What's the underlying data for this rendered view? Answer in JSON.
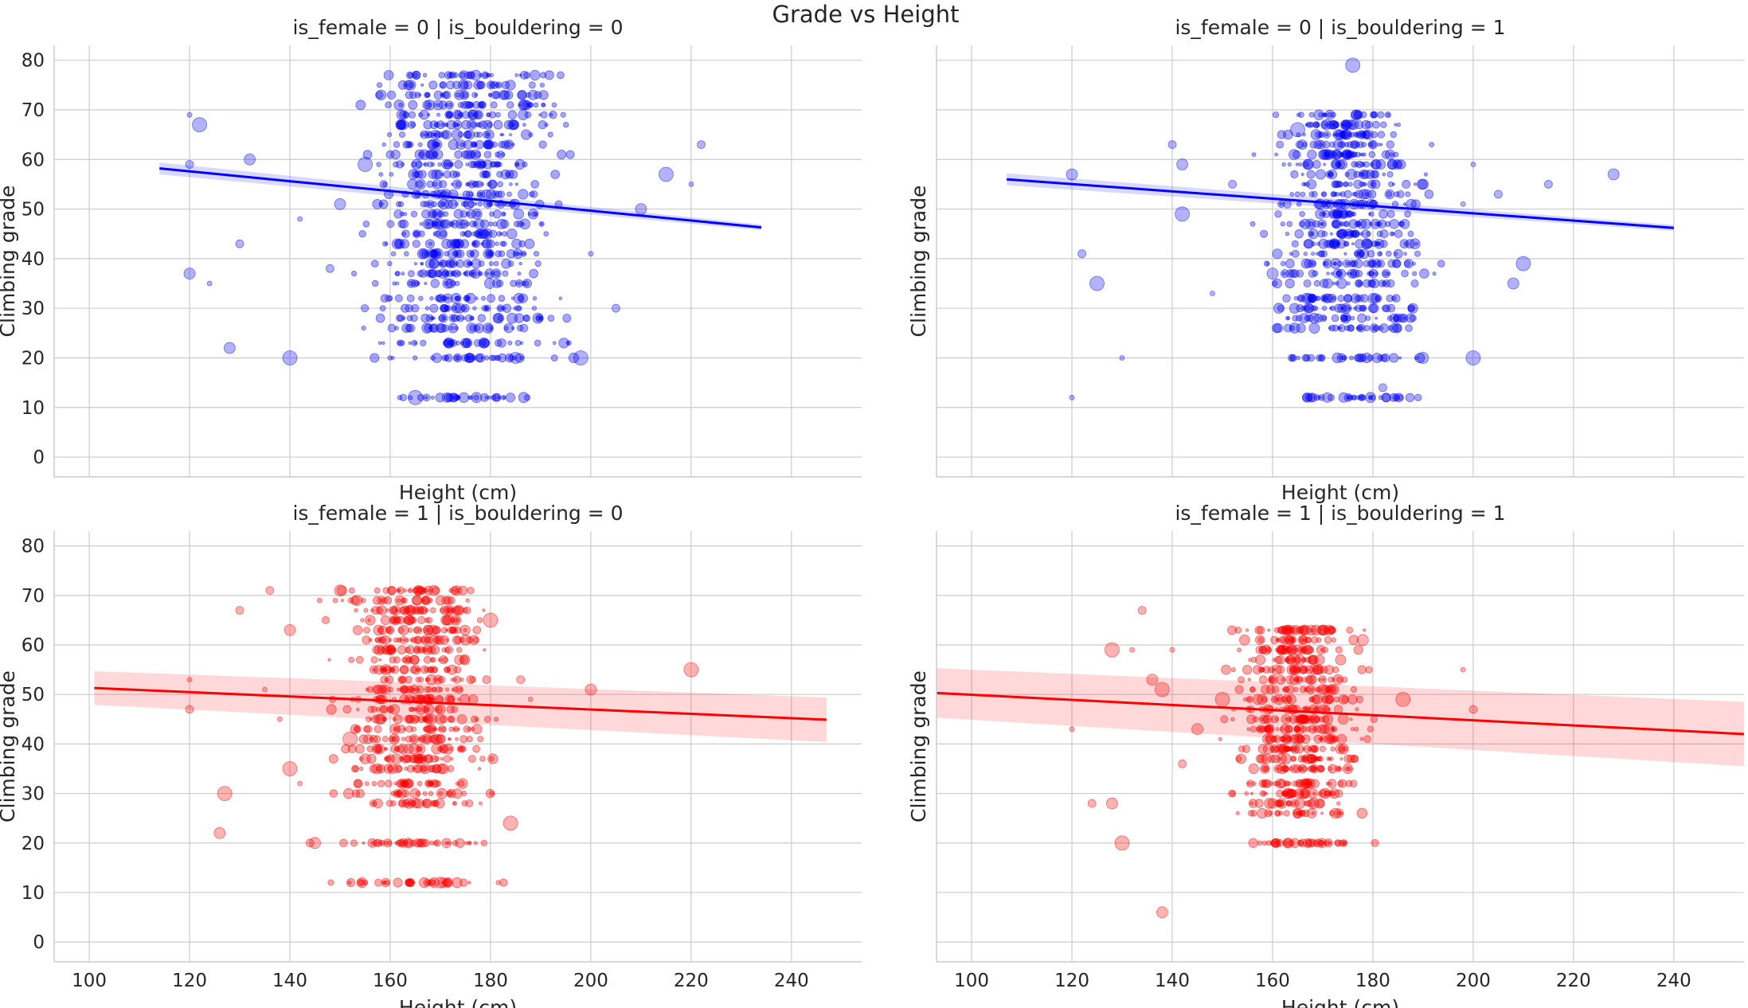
{
  "figure": {
    "title": "Grade vs Height"
  },
  "chart_data": [
    {
      "type": "scatter",
      "title": "is_female = 0 | is_bouldering = 0",
      "xlabel": "Height (cm)",
      "ylabel": "Climbing grade",
      "xlim": [
        93,
        254
      ],
      "ylim": [
        -4,
        83
      ],
      "xticks": [],
      "yticks": [
        0,
        10,
        20,
        30,
        40,
        50,
        60,
        70,
        80
      ],
      "color": "#0000ff",
      "grid": true,
      "regression": {
        "x": [
          114,
          234
        ],
        "y": [
          58.2,
          46.3
        ],
        "ci_halfwidth": [
          1.2,
          0.6
        ]
      },
      "cluster": {
        "x_range": [
          150,
          200
        ],
        "y_levels": [
          12,
          20,
          23,
          26,
          28,
          30,
          32,
          35,
          37,
          39,
          41,
          43,
          45,
          47,
          49,
          51,
          53,
          55,
          57,
          59,
          61,
          63,
          65,
          67,
          69,
          71,
          73,
          75,
          77
        ]
      },
      "sample_points": [
        {
          "x": 120,
          "y": 69
        },
        {
          "x": 120,
          "y": 59
        },
        {
          "x": 120,
          "y": 37
        },
        {
          "x": 122,
          "y": 67
        },
        {
          "x": 124,
          "y": 35
        },
        {
          "x": 130,
          "y": 43
        },
        {
          "x": 132,
          "y": 60
        },
        {
          "x": 140,
          "y": 20
        },
        {
          "x": 142,
          "y": 48
        },
        {
          "x": 148,
          "y": 38
        },
        {
          "x": 150,
          "y": 51
        },
        {
          "x": 155,
          "y": 59
        },
        {
          "x": 160,
          "y": 32
        },
        {
          "x": 172,
          "y": 75
        },
        {
          "x": 185,
          "y": 20
        },
        {
          "x": 198,
          "y": 20
        },
        {
          "x": 200,
          "y": 41
        },
        {
          "x": 205,
          "y": 30
        },
        {
          "x": 210,
          "y": 50
        },
        {
          "x": 215,
          "y": 57
        },
        {
          "x": 220,
          "y": 55
        },
        {
          "x": 222,
          "y": 63
        },
        {
          "x": 128,
          "y": 22
        },
        {
          "x": 165,
          "y": 12
        }
      ]
    },
    {
      "type": "scatter",
      "title": "is_female = 0 | is_bouldering = 1",
      "xlabel": "Height (cm)",
      "ylabel": "Climbing grade",
      "xlim": [
        93,
        254
      ],
      "ylim": [
        -4,
        83
      ],
      "xticks": [],
      "yticks": [],
      "color": "#0000ff",
      "grid": true,
      "regression": {
        "x": [
          107,
          240
        ],
        "y": [
          56.0,
          46.2
        ],
        "ci_halfwidth": [
          1.2,
          0.6
        ]
      },
      "cluster": {
        "x_range": [
          155,
          195
        ],
        "y_levels": [
          12,
          20,
          26,
          28,
          30,
          32,
          35,
          37,
          39,
          41,
          43,
          45,
          47,
          49,
          51,
          53,
          55,
          57,
          59,
          61,
          63,
          65,
          67,
          69
        ]
      },
      "sample_points": [
        {
          "x": 120,
          "y": 12
        },
        {
          "x": 122,
          "y": 41
        },
        {
          "x": 120,
          "y": 57
        },
        {
          "x": 125,
          "y": 35
        },
        {
          "x": 130,
          "y": 20
        },
        {
          "x": 140,
          "y": 63
        },
        {
          "x": 142,
          "y": 59
        },
        {
          "x": 142,
          "y": 49
        },
        {
          "x": 148,
          "y": 33
        },
        {
          "x": 152,
          "y": 55
        },
        {
          "x": 160,
          "y": 37
        },
        {
          "x": 165,
          "y": 66
        },
        {
          "x": 180,
          "y": 12
        },
        {
          "x": 182,
          "y": 14
        },
        {
          "x": 190,
          "y": 20
        },
        {
          "x": 200,
          "y": 20
        },
        {
          "x": 200,
          "y": 59
        },
        {
          "x": 205,
          "y": 53
        },
        {
          "x": 208,
          "y": 35
        },
        {
          "x": 210,
          "y": 39
        },
        {
          "x": 198,
          "y": 51
        },
        {
          "x": 215,
          "y": 55
        },
        {
          "x": 228,
          "y": 57
        },
        {
          "x": 176,
          "y": 79
        }
      ]
    },
    {
      "type": "scatter",
      "title": "is_female = 1 | is_bouldering = 0",
      "xlabel": "Height (cm)",
      "ylabel": "Climbing grade",
      "xlim": [
        93,
        254
      ],
      "ylim": [
        -4,
        83
      ],
      "xticks": [
        100,
        120,
        140,
        160,
        180,
        200,
        220,
        240
      ],
      "yticks": [
        0,
        10,
        20,
        30,
        40,
        50,
        60,
        70,
        80
      ],
      "color": "#ff0000",
      "grid": true,
      "regression": {
        "x": [
          101,
          247
        ],
        "y": [
          51.3,
          44.9
        ],
        "ci_halfwidth": [
          3.4,
          4.5
        ]
      },
      "cluster": {
        "x_range": [
          145,
          185
        ],
        "y_levels": [
          12,
          20,
          28,
          30,
          32,
          35,
          37,
          39,
          41,
          43,
          45,
          47,
          49,
          51,
          53,
          55,
          57,
          59,
          61,
          63,
          65,
          67,
          69,
          71
        ]
      },
      "sample_points": [
        {
          "x": 120,
          "y": 53
        },
        {
          "x": 120,
          "y": 47
        },
        {
          "x": 126,
          "y": 22
        },
        {
          "x": 127,
          "y": 30
        },
        {
          "x": 135,
          "y": 51
        },
        {
          "x": 136,
          "y": 71
        },
        {
          "x": 140,
          "y": 63
        },
        {
          "x": 140,
          "y": 35
        },
        {
          "x": 142,
          "y": 32
        },
        {
          "x": 144,
          "y": 20
        },
        {
          "x": 150,
          "y": 71
        },
        {
          "x": 152,
          "y": 41
        },
        {
          "x": 164,
          "y": 71
        },
        {
          "x": 164,
          "y": 12
        },
        {
          "x": 170,
          "y": 12
        },
        {
          "x": 184,
          "y": 24
        },
        {
          "x": 188,
          "y": 49
        },
        {
          "x": 186,
          "y": 53
        },
        {
          "x": 200,
          "y": 51
        },
        {
          "x": 220,
          "y": 55
        },
        {
          "x": 138,
          "y": 45
        },
        {
          "x": 130,
          "y": 67
        },
        {
          "x": 145,
          "y": 20
        },
        {
          "x": 180,
          "y": 65
        }
      ]
    },
    {
      "type": "scatter",
      "title": "is_female = 1 | is_bouldering = 1",
      "xlabel": "Height (cm)",
      "ylabel": "Climbing grade",
      "xlim": [
        93,
        254
      ],
      "ylim": [
        -4,
        83
      ],
      "xticks": [
        100,
        120,
        140,
        160,
        180,
        200,
        220,
        240
      ],
      "yticks": [],
      "color": "#ff0000",
      "grid": true,
      "regression": {
        "x": [
          93,
          254
        ],
        "y": [
          50.3,
          42.0
        ],
        "ci_halfwidth": [
          5.0,
          6.5
        ]
      },
      "cluster": {
        "x_range": [
          148,
          182
        ],
        "y_levels": [
          20,
          26,
          28,
          30,
          32,
          35,
          37,
          39,
          41,
          43,
          45,
          47,
          49,
          51,
          53,
          55,
          57,
          59,
          61,
          63
        ]
      },
      "sample_points": [
        {
          "x": 120,
          "y": 43
        },
        {
          "x": 124,
          "y": 28
        },
        {
          "x": 128,
          "y": 28
        },
        {
          "x": 130,
          "y": 20
        },
        {
          "x": 132,
          "y": 59
        },
        {
          "x": 134,
          "y": 67
        },
        {
          "x": 136,
          "y": 53
        },
        {
          "x": 138,
          "y": 51
        },
        {
          "x": 140,
          "y": 59
        },
        {
          "x": 142,
          "y": 36
        },
        {
          "x": 145,
          "y": 43
        },
        {
          "x": 150,
          "y": 49
        },
        {
          "x": 160,
          "y": 20
        },
        {
          "x": 166,
          "y": 20
        },
        {
          "x": 178,
          "y": 61
        },
        {
          "x": 186,
          "y": 49
        },
        {
          "x": 198,
          "y": 55
        },
        {
          "x": 200,
          "y": 47
        },
        {
          "x": 138,
          "y": 6
        },
        {
          "x": 128,
          "y": 59
        }
      ]
    }
  ]
}
